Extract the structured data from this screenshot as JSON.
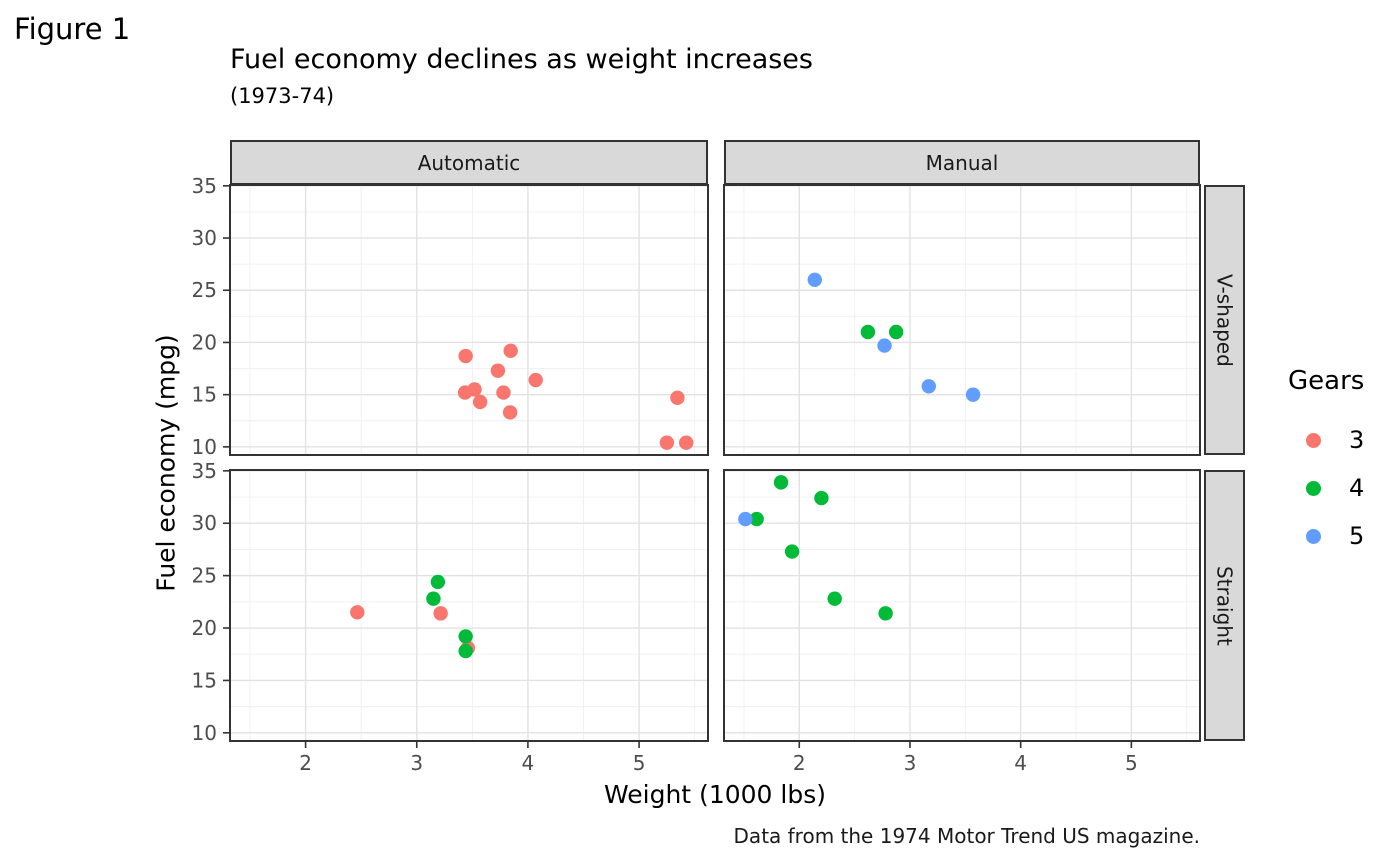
{
  "figure_tag": "Figure 1",
  "theme": {
    "strip_bg": "#d9d9d9",
    "strip_text": "#1a1a1a",
    "panel_bg": "#ffffff",
    "panel_border": "#333333",
    "grid_major": "#e2e2e2",
    "grid_minor": "#efefef",
    "tick_color": "#333333",
    "tick_label_color": "#4d4d4d"
  },
  "chart_data": {
    "type": "scatter",
    "title": "Fuel economy declines as weight increases",
    "subtitle": "(1973-74)",
    "caption": "Data from the 1974 Motor Trend US magazine.",
    "xlabel": "Weight (1000 lbs)",
    "ylabel": "Fuel economy (mpg)",
    "xlim": [
      1.32,
      5.62
    ],
    "ylim": [
      9.22,
      35.08
    ],
    "x_major_ticks": [
      2,
      3,
      4,
      5
    ],
    "x_minor_ticks": [
      1.5,
      2.5,
      3.5,
      4.5,
      5.5
    ],
    "y_major_ticks": [
      10,
      15,
      20,
      25,
      30,
      35
    ],
    "y_minor_ticks": [
      12.5,
      17.5,
      22.5,
      27.5,
      32.5
    ],
    "grid": true,
    "legend": {
      "title": "Gears",
      "position": "right",
      "items": [
        {
          "label": "3",
          "color": "#F8766D"
        },
        {
          "label": "4",
          "color": "#00BA38"
        },
        {
          "label": "5",
          "color": "#619CFF"
        }
      ]
    },
    "facets": {
      "cols": [
        "Automatic",
        "Manual"
      ],
      "rows": [
        "V-shaped",
        "Straight"
      ]
    },
    "colors": {
      "3": "#F8766D",
      "4": "#00BA38",
      "5": "#619CFF"
    },
    "panels": [
      {
        "col": "Automatic",
        "row": "V-shaped",
        "points": [
          {
            "x": 3.44,
            "y": 18.7,
            "gear": "3"
          },
          {
            "x": 3.57,
            "y": 14.3,
            "gear": "3"
          },
          {
            "x": 4.07,
            "y": 16.4,
            "gear": "3"
          },
          {
            "x": 3.73,
            "y": 17.3,
            "gear": "3"
          },
          {
            "x": 3.78,
            "y": 15.2,
            "gear": "3"
          },
          {
            "x": 5.25,
            "y": 10.4,
            "gear": "3"
          },
          {
            "x": 5.424,
            "y": 10.4,
            "gear": "3"
          },
          {
            "x": 5.345,
            "y": 14.7,
            "gear": "3"
          },
          {
            "x": 3.52,
            "y": 15.5,
            "gear": "3"
          },
          {
            "x": 3.435,
            "y": 15.2,
            "gear": "3"
          },
          {
            "x": 3.84,
            "y": 13.3,
            "gear": "3"
          },
          {
            "x": 3.845,
            "y": 19.2,
            "gear": "3"
          }
        ]
      },
      {
        "col": "Manual",
        "row": "V-shaped",
        "points": [
          {
            "x": 2.62,
            "y": 21.0,
            "gear": "4"
          },
          {
            "x": 2.875,
            "y": 21.0,
            "gear": "4"
          },
          {
            "x": 2.14,
            "y": 26.0,
            "gear": "5"
          },
          {
            "x": 3.17,
            "y": 15.8,
            "gear": "5"
          },
          {
            "x": 2.77,
            "y": 19.7,
            "gear": "5"
          },
          {
            "x": 3.57,
            "y": 15.0,
            "gear": "5"
          }
        ]
      },
      {
        "col": "Automatic",
        "row": "Straight",
        "points": [
          {
            "x": 3.215,
            "y": 21.4,
            "gear": "3"
          },
          {
            "x": 3.46,
            "y": 18.1,
            "gear": "3"
          },
          {
            "x": 3.19,
            "y": 24.4,
            "gear": "4"
          },
          {
            "x": 3.15,
            "y": 22.8,
            "gear": "4"
          },
          {
            "x": 3.44,
            "y": 19.2,
            "gear": "4"
          },
          {
            "x": 3.44,
            "y": 17.8,
            "gear": "4"
          },
          {
            "x": 2.465,
            "y": 21.5,
            "gear": "3"
          }
        ]
      },
      {
        "col": "Manual",
        "row": "Straight",
        "points": [
          {
            "x": 2.32,
            "y": 22.8,
            "gear": "4"
          },
          {
            "x": 2.2,
            "y": 32.4,
            "gear": "4"
          },
          {
            "x": 1.615,
            "y": 30.4,
            "gear": "4"
          },
          {
            "x": 1.835,
            "y": 33.9,
            "gear": "4"
          },
          {
            "x": 1.935,
            "y": 27.3,
            "gear": "4"
          },
          {
            "x": 1.513,
            "y": 30.4,
            "gear": "5"
          },
          {
            "x": 2.78,
            "y": 21.4,
            "gear": "4"
          }
        ]
      }
    ]
  }
}
